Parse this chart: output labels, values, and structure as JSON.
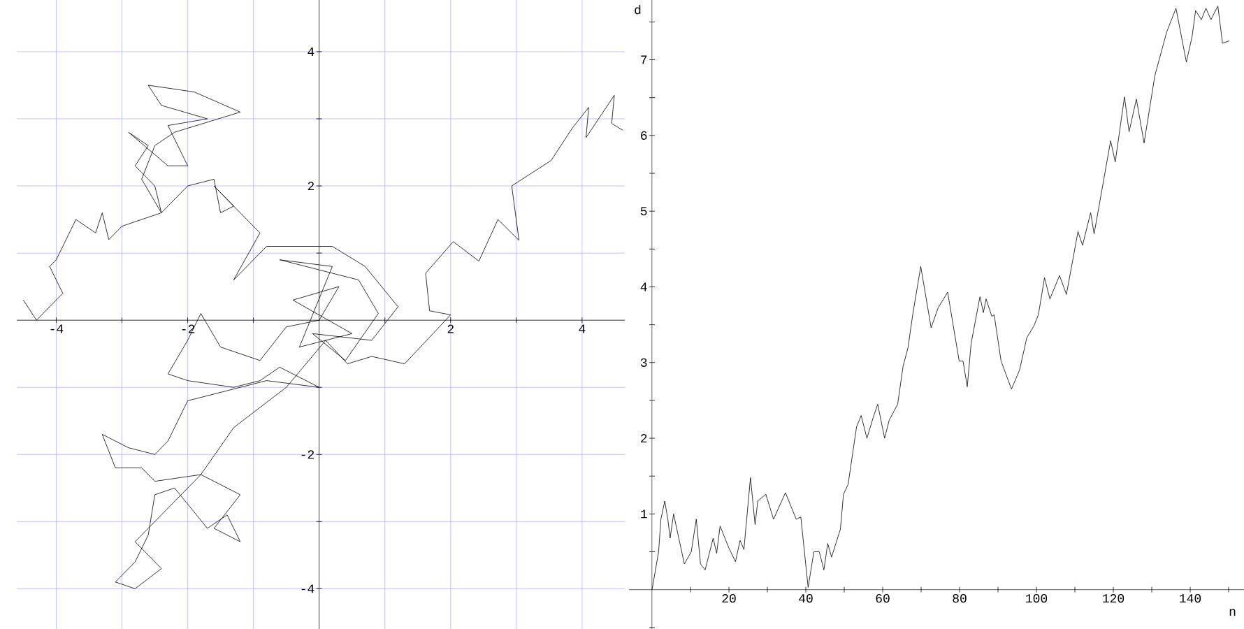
{
  "chart_data": [
    {
      "type": "line",
      "color": "#000000",
      "grid": true,
      "x": [
        -4.5,
        -4.3,
        -3.9,
        -4.1,
        -4.0,
        -3.7,
        -3.4,
        -3.3,
        -3.2,
        -3.0,
        -2.7,
        -2.4,
        -2.7,
        -2.5,
        -2.2,
        -1.2,
        -1.9,
        -2.6,
        -2.4,
        -1.7,
        -2.3,
        -2.0,
        -2.3,
        -2.9,
        -2.6,
        -2.8,
        -2.5,
        -2.4,
        -2.0,
        -1.6,
        -1.5,
        -1.3,
        -1.6,
        -1.2,
        -0.9,
        -1.3,
        -0.8,
        0.2,
        0.7,
        1.2,
        0.8,
        -0.1,
        0.4,
        0.9,
        0.6,
        -0.6,
        0.2,
        -0.3,
        0.5,
        -0.4,
        0.3,
        0.0,
        -0.5,
        -0.9,
        -1.5,
        -1.8,
        -2.0,
        -2.3,
        -2.0,
        -1.3,
        -0.9,
        -0.6,
        0.0,
        -0.8,
        -2.0,
        -2.3,
        -2.5,
        -2.9,
        -3.3,
        -3.1,
        -2.7,
        -2.5,
        -1.8,
        -1.2,
        -1.6,
        -1.2,
        -1.4,
        -1.7,
        -2.2,
        -2.5,
        -2.6,
        -2.8,
        -3.1,
        -2.8,
        -2.4,
        -2.6,
        -2.8,
        -2.4,
        -1.8,
        -1.3,
        -0.5,
        0.1,
        0.43,
        0.8,
        1.3,
        2.0,
        1.68,
        1.62,
        2.04,
        2.43,
        2.72,
        3.04,
        2.93,
        3.53,
        3.85,
        4.1,
        4.06,
        4.49,
        4.45,
        4.62
      ],
      "values": [
        0.3,
        0.0,
        0.4,
        0.8,
        0.9,
        1.5,
        1.3,
        1.6,
        1.2,
        1.4,
        1.5,
        1.6,
        2.1,
        2.6,
        2.8,
        3.1,
        3.4,
        3.5,
        3.2,
        3.0,
        2.9,
        2.3,
        2.3,
        2.8,
        2.6,
        2.3,
        2.0,
        1.6,
        2.0,
        2.1,
        1.6,
        1.7,
        2.0,
        1.6,
        1.3,
        0.6,
        1.1,
        1.1,
        0.8,
        0.2,
        -0.3,
        -0.2,
        -0.6,
        0.1,
        0.6,
        0.9,
        0.8,
        -0.4,
        -0.2,
        0.3,
        0.5,
        0.0,
        -0.1,
        -0.6,
        -0.4,
        0.1,
        -0.3,
        -0.8,
        -0.9,
        -1.0,
        -0.9,
        -0.7,
        -1.0,
        -0.9,
        -1.2,
        -1.8,
        -2.0,
        -1.9,
        -1.7,
        -2.2,
        -2.2,
        -2.4,
        -2.3,
        -2.6,
        -3.1,
        -3.3,
        -2.9,
        -3.1,
        -2.5,
        -2.6,
        -3.2,
        -3.6,
        -3.9,
        -4.0,
        -3.7,
        -3.5,
        -3.3,
        -2.9,
        -2.3,
        -1.6,
        -1.0,
        -0.3,
        -0.65,
        -0.54,
        -0.65,
        0.08,
        0.14,
        0.7,
        1.17,
        0.88,
        1.5,
        1.19,
        2.0,
        2.38,
        2.86,
        3.17,
        2.72,
        3.35,
        2.93,
        2.83
      ],
      "xlim": [
        -4.6,
        4.65
      ],
      "ylim": [
        -4.6,
        4.77
      ],
      "xticks": [
        -4,
        {
          "value": -3,
          "label": null
        },
        -2,
        {
          "value": -1,
          "label": null
        },
        {
          "value": 1,
          "label": null
        },
        2,
        {
          "value": 3,
          "label": null
        },
        4
      ],
      "yticks": [
        -4,
        {
          "value": -3,
          "label": null
        },
        -2,
        {
          "value": -1,
          "label": null
        },
        {
          "value": 1,
          "label": null
        },
        2,
        {
          "value": 3,
          "label": null
        },
        4
      ]
    },
    {
      "type": "line",
      "color": "#000000",
      "xlabel": "n",
      "ylabel": "d",
      "x": [
        0,
        1.7,
        2.3,
        3.3,
        4.1,
        4.7,
        5.6,
        8.4,
        10.2,
        11.5,
        12.6,
        13.8,
        15.9,
        16.8,
        17.7,
        19.9,
        21.7,
        22.9,
        23.9,
        25.6,
        26.8,
        27.5,
        29.6,
        31.6,
        34.7,
        37.5,
        38.7,
        40.6,
        42.1,
        43.5,
        44.7,
        45.7,
        46.7,
        49.0,
        49.8,
        51.0,
        53.2,
        54.4,
        55.9,
        57.5,
        58.7,
        60.5,
        61.7,
        63.9,
        65.3,
        66.6,
        67.8,
        69.9,
        72.6,
        74.4,
        76.9,
        79.9,
        80.9,
        82.0,
        83.0,
        85.3,
        86.2,
        86.9,
        88.4,
        89.0,
        90.8,
        93.5,
        95.6,
        97.5,
        99.3,
        100.5,
        102.1,
        103.5,
        106,
        107.8,
        110.8,
        112,
        114.1,
        115,
        119.3,
        120.5,
        122.9,
        124.1,
        126,
        128,
        130.8,
        133.9,
        136.3,
        139,
        140.5,
        141.4,
        142.9,
        144.1,
        145.4,
        147.2,
        148.4,
        150.2
      ],
      "values": [
        0,
        0.5,
        0.93,
        1.17,
        0.93,
        0.68,
        1.0,
        0.34,
        0.5,
        0.93,
        0.34,
        0.26,
        0.68,
        0.48,
        0.84,
        0.56,
        0.37,
        0.65,
        0.53,
        1.48,
        0.86,
        1.17,
        1.26,
        0.93,
        1.28,
        0.93,
        0.96,
        0.03,
        0.5,
        0.5,
        0.26,
        0.61,
        0.43,
        0.8,
        1.26,
        1.39,
        2.15,
        2.3,
        2.0,
        2.27,
        2.45,
        2.0,
        2.24,
        2.45,
        2.95,
        3.2,
        3.63,
        4.27,
        3.46,
        3.72,
        3.93,
        3.02,
        3.02,
        2.68,
        3.25,
        3.87,
        3.66,
        3.84,
        3.61,
        3.63,
        3.02,
        2.65,
        2.9,
        3.33,
        3.48,
        3.63,
        4.12,
        3.84,
        4.15,
        3.9,
        4.73,
        4.55,
        4.98,
        4.7,
        5.93,
        5.65,
        6.51,
        6.05,
        6.48,
        5.9,
        6.79,
        7.37,
        7.68,
        6.97,
        7.31,
        7.65,
        7.53,
        7.68,
        7.53,
        7.71,
        7.22,
        7.25
      ],
      "xlim": [
        -6,
        154
      ],
      "ylim": [
        -0.52,
        7.79
      ],
      "xticks": [
        {
          "value": 10,
          "label": null
        },
        20,
        {
          "value": 30,
          "label": null
        },
        40,
        {
          "value": 50,
          "label": null
        },
        60,
        {
          "value": 70,
          "label": null
        },
        80,
        {
          "value": 90,
          "label": null
        },
        100,
        {
          "value": 110,
          "label": null
        },
        120,
        {
          "value": 130,
          "label": null
        },
        140,
        {
          "value": 150,
          "label": null
        }
      ],
      "yticks": [
        {
          "value": -0.5,
          "label": null
        },
        {
          "value": 0.5,
          "label": null
        },
        1,
        {
          "value": 1.5,
          "label": null
        },
        2,
        {
          "value": 2.5,
          "label": null
        },
        3,
        {
          "value": 3.5,
          "label": null
        },
        4,
        {
          "value": 4.5,
          "label": null
        },
        5,
        {
          "value": 5.5,
          "label": null
        },
        6,
        {
          "value": 6.5,
          "label": null
        },
        7,
        {
          "value": 7.5,
          "label": null
        }
      ]
    }
  ]
}
